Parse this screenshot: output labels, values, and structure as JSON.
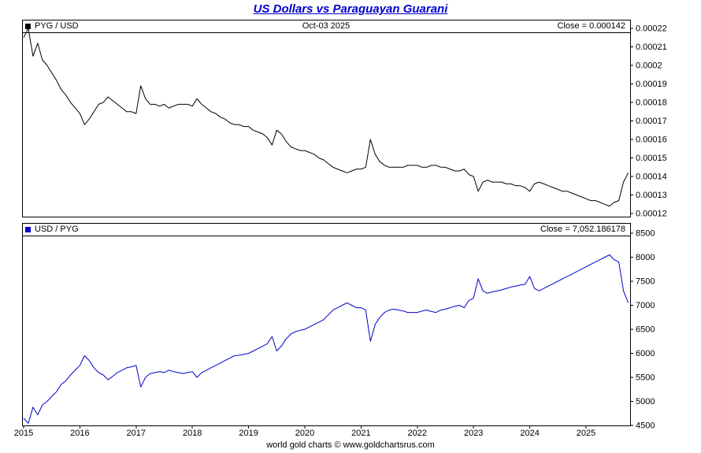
{
  "title": "US Dollars vs Paraguayan Guarani",
  "title_color": "#0000cc",
  "footer": "world gold charts © www.goldchartsrus.com",
  "top_panel": {
    "legend": "PYG / USD",
    "marker_color": "#000000",
    "date_label": "Oct-03 2025",
    "close_label": "Close = 0.000142"
  },
  "bottom_panel": {
    "legend": "USD / PYG",
    "marker_color": "#0000cc",
    "close_label": "Close = 7,052.186178"
  },
  "chart_data": {
    "type": "line",
    "x_unit": "decimal_year",
    "grid": false,
    "legend_position": "top-left",
    "x_ticks": [
      "2015",
      "2016",
      "2017",
      "2018",
      "2019",
      "2020",
      "2021",
      "2022",
      "2023",
      "2024",
      "2025"
    ],
    "x": [
      2015.0,
      2015.083,
      2015.167,
      2015.25,
      2015.333,
      2015.417,
      2015.5,
      2015.583,
      2015.667,
      2015.75,
      2015.833,
      2015.917,
      2016.0,
      2016.083,
      2016.167,
      2016.25,
      2016.333,
      2016.417,
      2016.5,
      2016.583,
      2016.667,
      2016.75,
      2016.833,
      2016.917,
      2017.0,
      2017.083,
      2017.167,
      2017.25,
      2017.333,
      2017.417,
      2017.5,
      2017.583,
      2017.667,
      2017.75,
      2017.833,
      2017.917,
      2018.0,
      2018.083,
      2018.167,
      2018.25,
      2018.333,
      2018.417,
      2018.5,
      2018.583,
      2018.667,
      2018.75,
      2018.833,
      2018.917,
      2019.0,
      2019.083,
      2019.167,
      2019.25,
      2019.333,
      2019.417,
      2019.5,
      2019.583,
      2019.667,
      2019.75,
      2019.833,
      2019.917,
      2020.0,
      2020.083,
      2020.167,
      2020.25,
      2020.333,
      2020.417,
      2020.5,
      2020.583,
      2020.667,
      2020.75,
      2020.833,
      2020.917,
      2021.0,
      2021.083,
      2021.167,
      2021.25,
      2021.333,
      2021.417,
      2021.5,
      2021.583,
      2021.667,
      2021.75,
      2021.833,
      2021.917,
      2022.0,
      2022.083,
      2022.167,
      2022.25,
      2022.333,
      2022.417,
      2022.5,
      2022.583,
      2022.667,
      2022.75,
      2022.833,
      2022.917,
      2023.0,
      2023.083,
      2023.167,
      2023.25,
      2023.333,
      2023.417,
      2023.5,
      2023.583,
      2023.667,
      2023.75,
      2023.833,
      2023.917,
      2024.0,
      2024.083,
      2024.167,
      2024.25,
      2024.333,
      2024.417,
      2024.5,
      2024.583,
      2024.667,
      2024.75,
      2024.833,
      2024.917,
      2025.0,
      2025.083,
      2025.167,
      2025.25,
      2025.333,
      2025.417,
      2025.5,
      2025.583,
      2025.667,
      2025.75
    ],
    "panels": [
      {
        "id": "pyg-usd",
        "title": "PYG / USD",
        "close": 0.000142,
        "ylim": [
          0.00012,
          0.00022
        ],
        "yticks": [
          "0.00022",
          "0.00021",
          "0.0002",
          "0.00019",
          "0.00018",
          "0.00017",
          "0.00016",
          "0.00015",
          "0.00014",
          "0.00013",
          "0.00012"
        ]
      },
      {
        "id": "usd-pyg",
        "title": "USD / PYG",
        "close": 7052.186178,
        "ylim": [
          4500,
          8500
        ],
        "yticks": [
          "8500",
          "8000",
          "7500",
          "7000",
          "6500",
          "6000",
          "5500",
          "5000",
          "4500"
        ]
      }
    ],
    "series": [
      {
        "id": "pyg-usd",
        "name": "PYG / USD",
        "color": "#000000",
        "panel": 0,
        "values": [
          0.000215,
          0.00022,
          0.000205,
          0.000212,
          0.000203,
          0.0002,
          0.000196,
          0.000192,
          0.000187,
          0.000184,
          0.00018,
          0.000177,
          0.000174,
          0.000168,
          0.000171,
          0.000175,
          0.000179,
          0.00018,
          0.000183,
          0.000181,
          0.000179,
          0.000177,
          0.000175,
          0.000175,
          0.000174,
          0.000189,
          0.000182,
          0.000179,
          0.000179,
          0.000178,
          0.000179,
          0.000177,
          0.000178,
          0.000179,
          0.000179,
          0.000179,
          0.000178,
          0.000182,
          0.000179,
          0.000177,
          0.000175,
          0.000174,
          0.000172,
          0.000171,
          0.000169,
          0.000168,
          0.000168,
          0.000167,
          0.000167,
          0.000165,
          0.000164,
          0.000163,
          0.000161,
          0.000157,
          0.000165,
          0.000163,
          0.000159,
          0.000156,
          0.000155,
          0.000154,
          0.000154,
          0.000153,
          0.000152,
          0.00015,
          0.000149,
          0.000147,
          0.000145,
          0.000144,
          0.000143,
          0.000142,
          0.000143,
          0.000144,
          0.000144,
          0.000145,
          0.00016,
          0.000152,
          0.000148,
          0.000146,
          0.000145,
          0.000145,
          0.000145,
          0.000145,
          0.000146,
          0.000146,
          0.000146,
          0.000145,
          0.000145,
          0.000146,
          0.000146,
          0.000145,
          0.000145,
          0.000144,
          0.000143,
          0.000143,
          0.000144,
          0.000141,
          0.00014,
          0.000132,
          0.000137,
          0.000138,
          0.000137,
          0.000137,
          0.000137,
          0.000136,
          0.000136,
          0.000135,
          0.000135,
          0.000134,
          0.000132,
          0.000136,
          0.000137,
          0.000136,
          0.000135,
          0.000134,
          0.000133,
          0.000132,
          0.000132,
          0.000131,
          0.00013,
          0.000129,
          0.000128,
          0.000127,
          0.000127,
          0.000126,
          0.000125,
          0.000124,
          0.000126,
          0.000127,
          0.000137,
          0.000142
        ]
      },
      {
        "id": "usd-pyg",
        "name": "USD / PYG",
        "color": "#0000cc",
        "panel": 1,
        "values": [
          4650,
          4545,
          4880,
          4720,
          4926,
          5000,
          5100,
          5200,
          5350,
          5430,
          5550,
          5650,
          5750,
          5950,
          5850,
          5700,
          5600,
          5550,
          5450,
          5520,
          5600,
          5650,
          5700,
          5720,
          5750,
          5300,
          5500,
          5580,
          5600,
          5620,
          5600,
          5650,
          5620,
          5600,
          5580,
          5600,
          5620,
          5500,
          5600,
          5650,
          5700,
          5750,
          5800,
          5850,
          5900,
          5950,
          5960,
          5980,
          6000,
          6050,
          6100,
          6150,
          6200,
          6350,
          6050,
          6150,
          6300,
          6400,
          6450,
          6480,
          6500,
          6550,
          6600,
          6650,
          6700,
          6800,
          6900,
          6950,
          7000,
          7050,
          7000,
          6950,
          6950,
          6900,
          6250,
          6600,
          6750,
          6850,
          6900,
          6920,
          6900,
          6880,
          6850,
          6850,
          6850,
          6880,
          6900,
          6870,
          6850,
          6900,
          6920,
          6950,
          6980,
          7000,
          6950,
          7100,
          7150,
          7550,
          7300,
          7250,
          7280,
          7300,
          7320,
          7350,
          7380,
          7400,
          7420,
          7440,
          7600,
          7350,
          7300,
          7350,
          7400,
          7450,
          7500,
          7550,
          7600,
          7650,
          7700,
          7750,
          7800,
          7850,
          7900,
          7950,
          8000,
          8050,
          7950,
          7900,
          7300,
          7052
        ]
      }
    ]
  }
}
